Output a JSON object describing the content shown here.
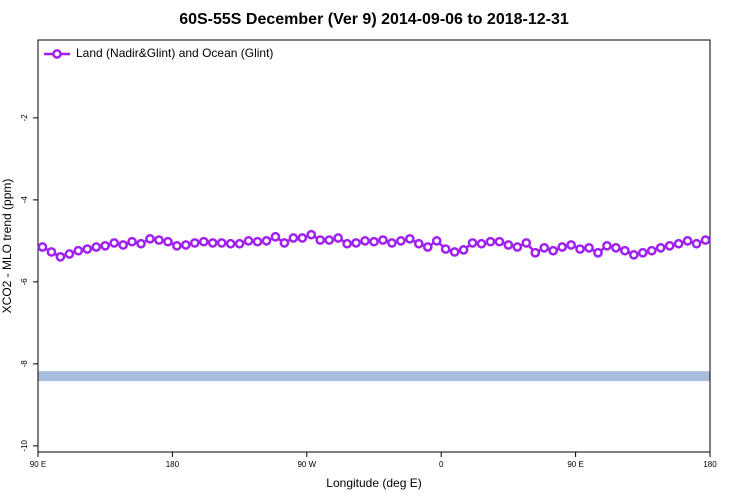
{
  "chart_data": {
    "type": "line",
    "title": "60S-55S December (Ver 9)   2014-09-06 to 2018-12-31",
    "x_label": "Longitude (deg E)",
    "y_label": "XCO2 - MLO trend (ppm)",
    "x": [
      93,
      99,
      105,
      111,
      117,
      123,
      129,
      135,
      141,
      147,
      153,
      159,
      165,
      171,
      177,
      183,
      189,
      195,
      201,
      207,
      213,
      219,
      225,
      231,
      237,
      243,
      249,
      255,
      261,
      267,
      273,
      279,
      285,
      291,
      297,
      303,
      309,
      315,
      321,
      327,
      333,
      339,
      345,
      351,
      357,
      363,
      369,
      375,
      381,
      387,
      393,
      399,
      405,
      411,
      417,
      423,
      429,
      435,
      441,
      447,
      453,
      459,
      465,
      471,
      477,
      483,
      489,
      495,
      501,
      507,
      513,
      519,
      525,
      531,
      537
    ],
    "series": [
      {
        "name": "Land (Nadir&Glint) and Ocean (Glint)",
        "color": "#a020f0",
        "values": [
          -5.15,
          -5.27,
          -5.39,
          -5.32,
          -5.24,
          -5.2,
          -5.15,
          -5.12,
          -5.05,
          -5.1,
          -5.02,
          -5.07,
          -4.95,
          -4.98,
          -5.02,
          -5.12,
          -5.1,
          -5.05,
          -5.02,
          -5.05,
          -5.05,
          -5.07,
          -5.07,
          -5.0,
          -5.02,
          -5.0,
          -4.9,
          -5.05,
          -4.93,
          -4.93,
          -4.85,
          -4.98,
          -4.98,
          -4.93,
          -5.07,
          -5.05,
          -5.0,
          -5.02,
          -4.98,
          -5.05,
          -5.0,
          -4.95,
          -5.07,
          -5.15,
          -5.0,
          -5.2,
          -5.27,
          -5.22,
          -5.05,
          -5.07,
          -5.02,
          -5.02,
          -5.1,
          -5.15,
          -5.05,
          -5.29,
          -5.17,
          -5.24,
          -5.15,
          -5.1,
          -5.2,
          -5.17,
          -5.29,
          -5.12,
          -5.17,
          -5.24,
          -5.34,
          -5.29,
          -5.24,
          -5.17,
          -5.12,
          -5.07,
          -5.0,
          -5.07,
          -4.98
        ]
      }
    ],
    "hline": {
      "value": -8.3,
      "color": "#a7bde0"
    },
    "xlim": [
      90,
      540
    ],
    "xticks": [
      {
        "value": 90,
        "label": "90 E"
      },
      {
        "value": 180,
        "label": "180"
      },
      {
        "value": 270,
        "label": "90 W"
      },
      {
        "value": 360,
        "label": "0"
      },
      {
        "value": 450,
        "label": "90 E"
      },
      {
        "value": 540,
        "label": "180"
      }
    ],
    "ylim": [
      -10.15,
      -0.1
    ],
    "yticks": [
      -10,
      -8,
      -6,
      -4,
      -2
    ],
    "legend": "top-left"
  }
}
